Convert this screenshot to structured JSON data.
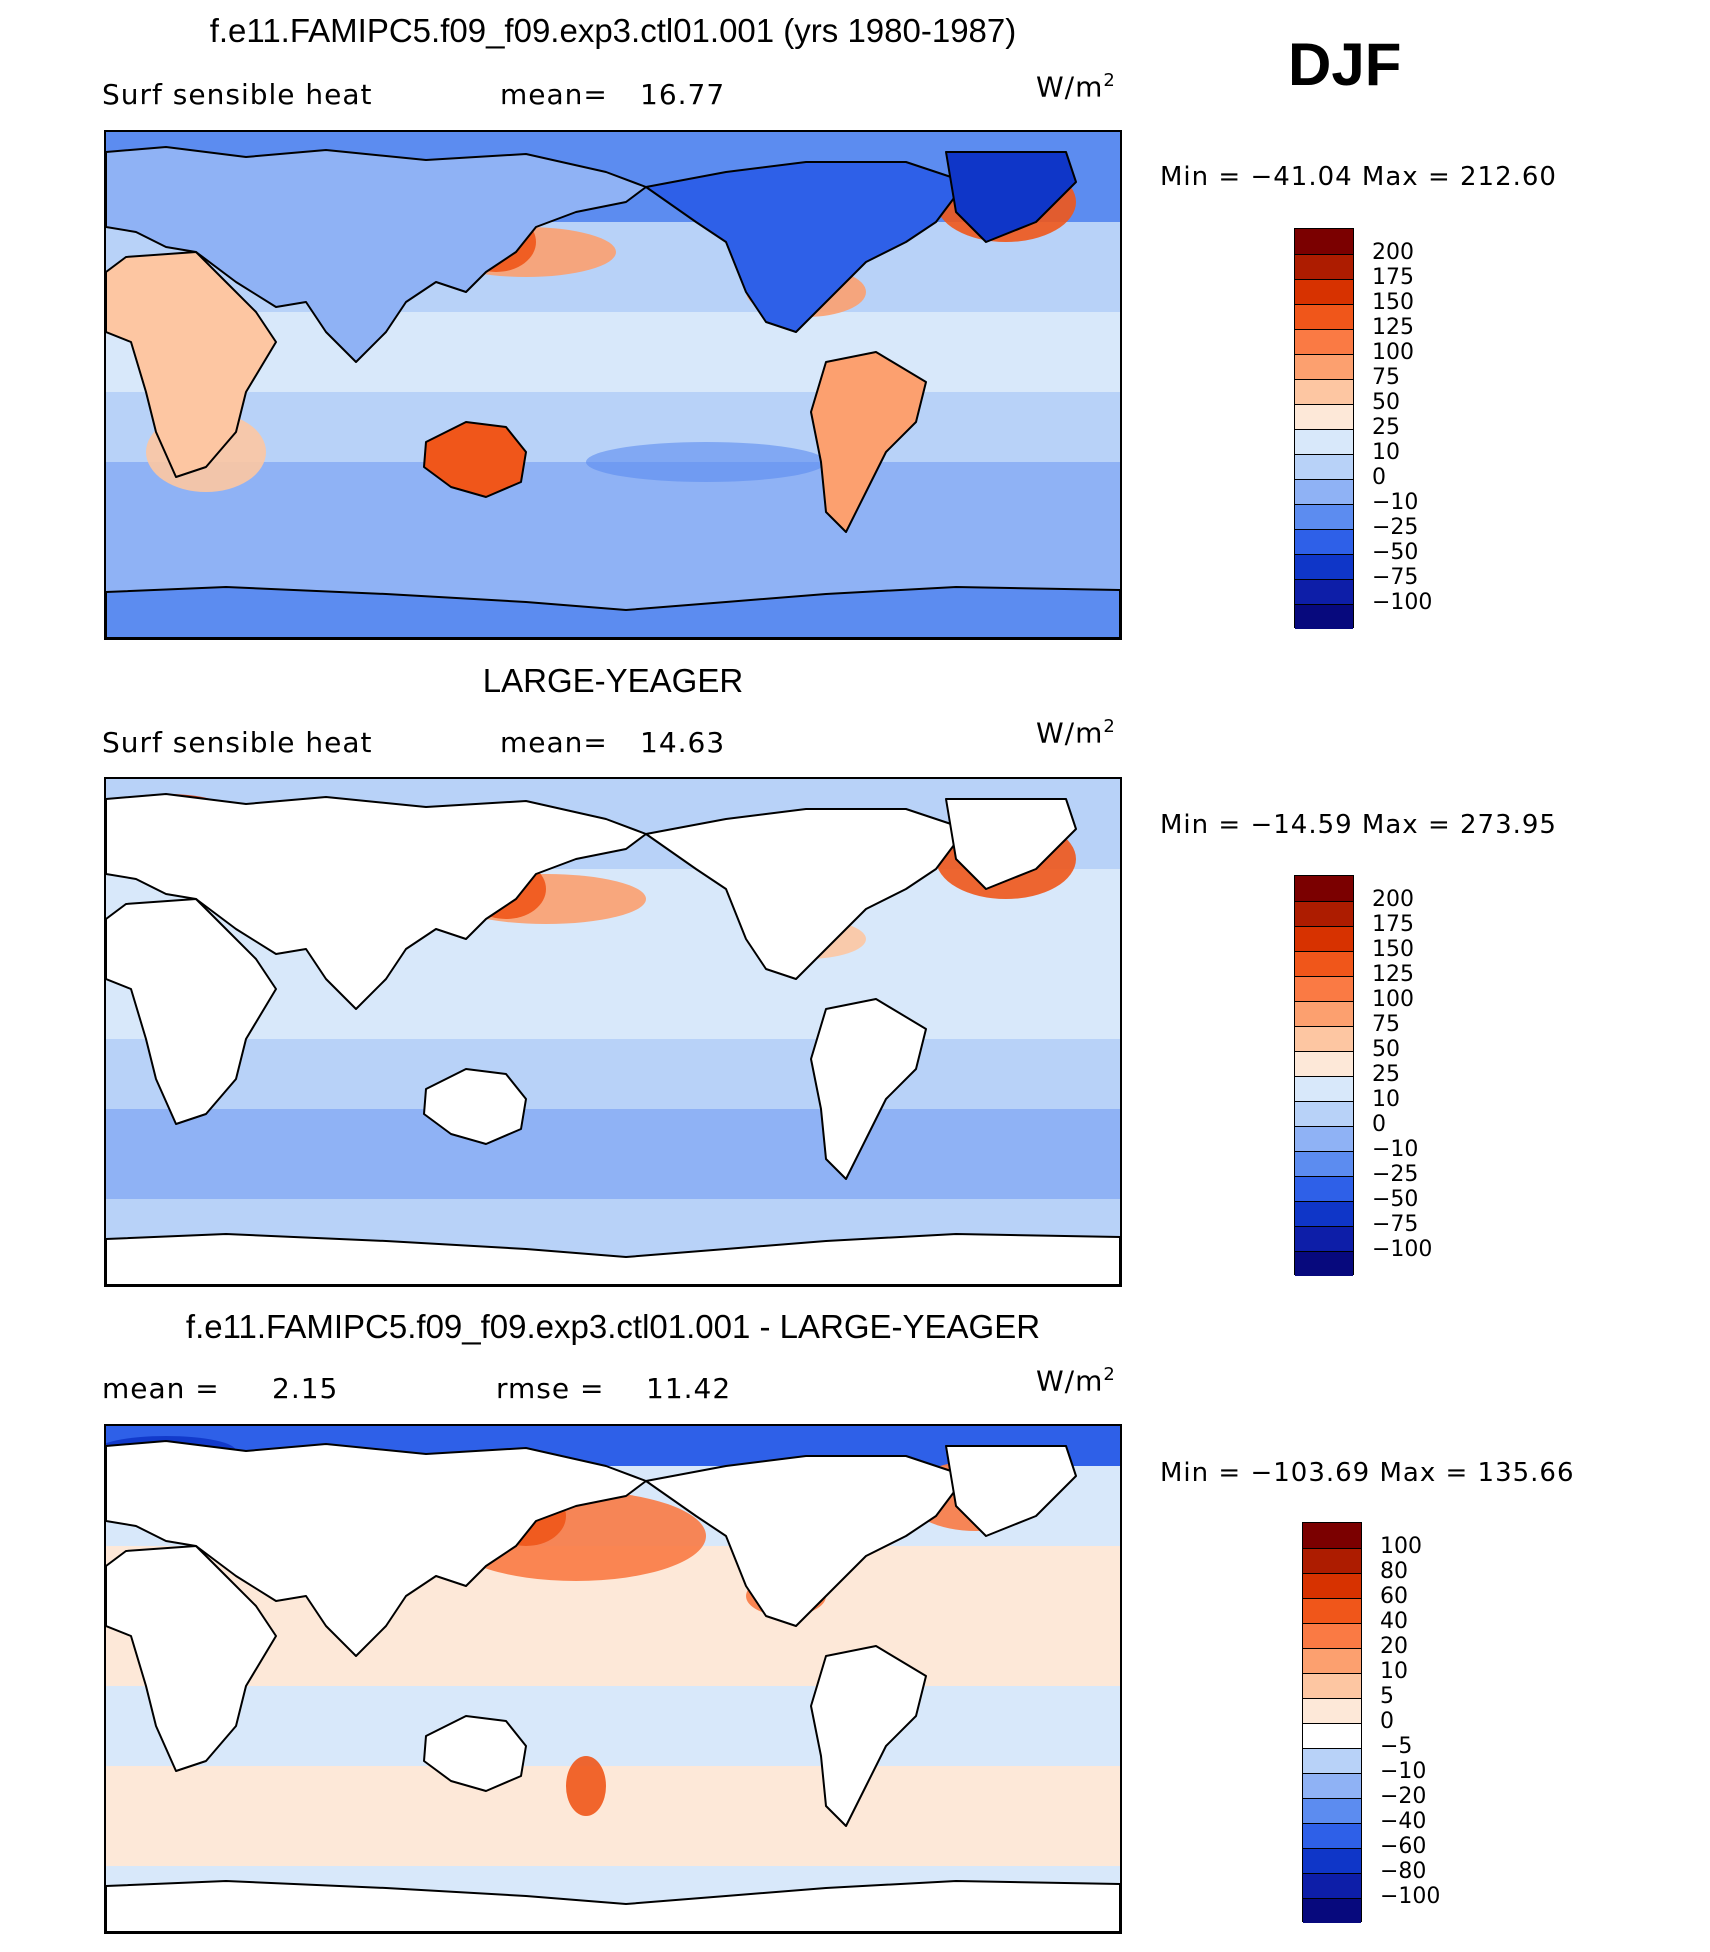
{
  "season": "DJF",
  "panels": [
    {
      "title": "f.e11.FAMIPC5.f09_f09.exp3.ctl01.001 (yrs 1980-1987)",
      "left_label": "Surf  sensible  heat",
      "stat_label": "mean=",
      "stat_value": "16.77",
      "unit_base": "W/m",
      "unit_exp": "2",
      "minmax": "Min  =  −41.04  Max  =  212.60",
      "colorbar": {
        "labels": [
          "200",
          "175",
          "150",
          "125",
          "100",
          "75",
          "50",
          "25",
          "10",
          "0",
          "−10",
          "−25",
          "−50",
          "−75",
          "−100"
        ],
        "colors": [
          "#7b0000",
          "#ad1c00",
          "#d73200",
          "#f0561a",
          "#fa7a44",
          "#fca06f",
          "#fdc6a2",
          "#fde8d8",
          "#d8e8fa",
          "#b8d2f8",
          "#8fb2f5",
          "#5c8cf0",
          "#2e60e8",
          "#0f36c8",
          "#0d1ea8",
          "#07097d"
        ]
      }
    },
    {
      "title": "LARGE-YEAGER",
      "left_label": "Surf  sensible  heat",
      "stat_label": "mean=",
      "stat_value": "14.63",
      "unit_base": "W/m",
      "unit_exp": "2",
      "minmax": "Min  =  −14.59  Max  =  273.95",
      "colorbar": {
        "labels": [
          "200",
          "175",
          "150",
          "125",
          "100",
          "75",
          "50",
          "25",
          "10",
          "0",
          "−10",
          "−25",
          "−50",
          "−75",
          "−100"
        ],
        "colors": [
          "#7b0000",
          "#ad1c00",
          "#d73200",
          "#f0561a",
          "#fa7a44",
          "#fca06f",
          "#fdc6a2",
          "#fde8d8",
          "#d8e8fa",
          "#b8d2f8",
          "#8fb2f5",
          "#5c8cf0",
          "#2e60e8",
          "#0f36c8",
          "#0d1ea8",
          "#07097d"
        ]
      }
    },
    {
      "title": "f.e11.FAMIPC5.f09_f09.exp3.ctl01.001 - LARGE-YEAGER",
      "left_label": "mean  =",
      "left_value": "2.15",
      "stat_label": "rmse  =",
      "stat_value": "11.42",
      "unit_base": "W/m",
      "unit_exp": "2",
      "minmax": "Min  =  −103.69  Max  =  135.66",
      "colorbar": {
        "labels": [
          "100",
          "80",
          "60",
          "40",
          "20",
          "10",
          "5",
          "0",
          "−5",
          "−10",
          "−20",
          "−40",
          "−60",
          "−80",
          "−100"
        ],
        "colors": [
          "#7b0000",
          "#ad1c00",
          "#d73200",
          "#f0561a",
          "#fa7a44",
          "#fca06f",
          "#fdc6a2",
          "#fde8d8",
          "#ffffff",
          "#b8d2f8",
          "#8fb2f5",
          "#5c8cf0",
          "#2e60e8",
          "#0f36c8",
          "#0d1ea8",
          "#07097d"
        ]
      }
    }
  ],
  "chart_data": [
    {
      "type": "heatmap",
      "title": "f.e11.FAMIPC5.f09_f09.exp3.ctl01.001 (yrs 1980-1987)",
      "variable": "Surf  sensible  heat",
      "units": "W/m2",
      "mean": 16.77,
      "min": -41.04,
      "max": 212.6,
      "levels": [
        -100,
        -75,
        -50,
        -25,
        -10,
        0,
        10,
        25,
        50,
        75,
        100,
        125,
        150,
        175,
        200
      ]
    },
    {
      "type": "heatmap",
      "title": "LARGE-YEAGER",
      "variable": "Surf  sensible  heat",
      "units": "W/m2",
      "mean": 14.63,
      "min": -14.59,
      "max": 273.95,
      "levels": [
        -100,
        -75,
        -50,
        -25,
        -10,
        0,
        10,
        25,
        50,
        75,
        100,
        125,
        150,
        175,
        200
      ]
    },
    {
      "type": "heatmap",
      "title": "f.e11.FAMIPC5.f09_f09.exp3.ctl01.001 - LARGE-YEAGER",
      "units": "W/m2",
      "mean": 2.15,
      "rmse": 11.42,
      "min": -103.69,
      "max": 135.66,
      "levels": [
        -100,
        -80,
        -60,
        -40,
        -20,
        -10,
        -5,
        0,
        5,
        10,
        20,
        40,
        60,
        80,
        100
      ]
    }
  ]
}
